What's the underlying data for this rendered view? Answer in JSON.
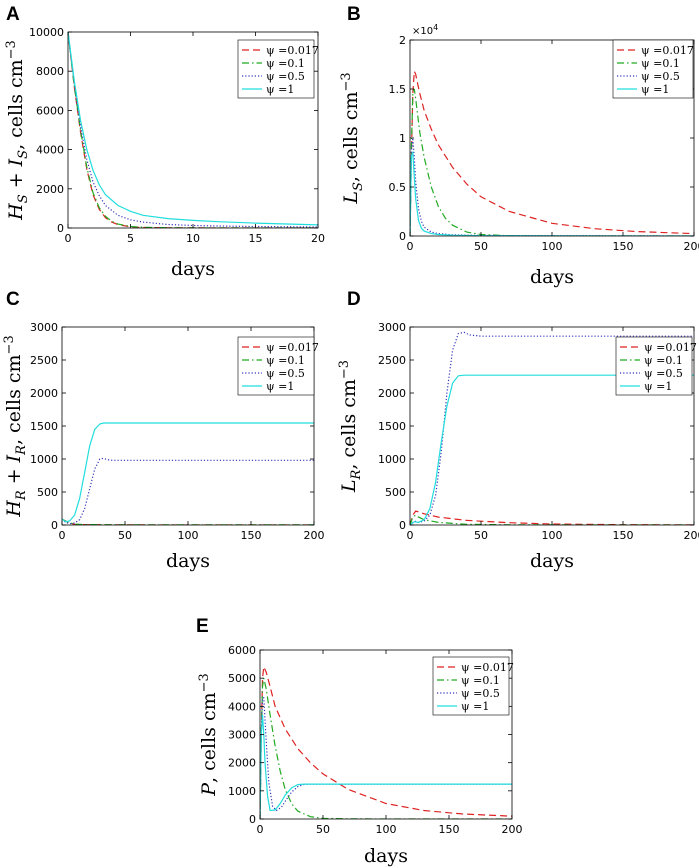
{
  "chart_data": [
    {
      "panel": "A",
      "type": "line",
      "xlabel": "days",
      "ylabel": {
        "main": "H",
        "sub1": "S",
        "mid": " + I",
        "sub2": "S",
        "unit": ", cells cm",
        "sup": "−3"
      },
      "xlim": [
        0,
        20
      ],
      "ylim": [
        0,
        10000
      ],
      "xticks": [
        0,
        5,
        10,
        15,
        20
      ],
      "yticks": [
        0,
        2000,
        4000,
        6000,
        8000,
        10000
      ],
      "series": [
        {
          "name": "ψ =0.017",
          "color": "#dd2222",
          "dash": "dashed",
          "x": [
            0,
            0.5,
            1,
            1.5,
            2,
            2.5,
            3,
            3.5,
            4,
            5,
            6,
            8,
            10,
            15,
            20
          ],
          "y": [
            10000,
            7200,
            4900,
            3000,
            1700,
            950,
            520,
            300,
            170,
            60,
            25,
            8,
            3,
            1,
            0
          ]
        },
        {
          "name": "ψ =0.1",
          "color": "#22aa22",
          "dash": "dashdot",
          "x": [
            0,
            0.5,
            1,
            1.5,
            2,
            2.5,
            3,
            3.5,
            4,
            5,
            6,
            8,
            10,
            15,
            20
          ],
          "y": [
            10000,
            7250,
            5000,
            3100,
            1800,
            1030,
            590,
            340,
            200,
            80,
            35,
            12,
            5,
            1,
            0
          ]
        },
        {
          "name": "ψ =0.5",
          "color": "#3333bb",
          "dash": "dotted",
          "x": [
            0,
            0.5,
            1,
            1.5,
            2,
            2.5,
            3,
            4,
            5,
            6,
            8,
            10,
            12,
            15,
            20
          ],
          "y": [
            10000,
            7350,
            5200,
            3500,
            2350,
            1650,
            1150,
            650,
            420,
            300,
            180,
            130,
            100,
            75,
            50
          ]
        },
        {
          "name": "ψ =1",
          "color": "#22dddd",
          "dash": "solid",
          "x": [
            0,
            0.5,
            1,
            1.5,
            2,
            2.5,
            3,
            4,
            5,
            6,
            8,
            10,
            12,
            15,
            20
          ],
          "y": [
            10000,
            7500,
            5500,
            4000,
            2950,
            2200,
            1700,
            1150,
            850,
            650,
            480,
            390,
            320,
            250,
            160
          ]
        }
      ]
    },
    {
      "panel": "B",
      "type": "line",
      "xlabel": "days",
      "ylabel": {
        "main": "L",
        "sub1": "S",
        "mid": "",
        "sub2": "",
        "unit": ", cells cm",
        "sup": "−3"
      },
      "xlim": [
        0,
        200
      ],
      "ylim": [
        0,
        20000
      ],
      "xticks": [
        0,
        50,
        100,
        150,
        200
      ],
      "yticks": [
        0,
        5000,
        10000,
        15000,
        20000
      ],
      "ytick_labels": [
        "0",
        "0.5",
        "1",
        "1.5",
        "2"
      ],
      "sci_base": "×10",
      "sci_exp": "4",
      "series": [
        {
          "name": "ψ =0.017",
          "color": "#dd2222",
          "dash": "dashed",
          "x": [
            0,
            1,
            2,
            3,
            4,
            5,
            7,
            10,
            15,
            20,
            30,
            40,
            50,
            70,
            100,
            130,
            160,
            200
          ],
          "y": [
            0,
            8000,
            14500,
            16800,
            16500,
            15800,
            14500,
            12800,
            10900,
            9300,
            7000,
            5300,
            4000,
            2500,
            1300,
            750,
            450,
            250
          ]
        },
        {
          "name": "ψ =0.1",
          "color": "#22aa22",
          "dash": "dashdot",
          "x": [
            0,
            1,
            2,
            3,
            4,
            5,
            7,
            10,
            15,
            20,
            25,
            30,
            40,
            50,
            70,
            100,
            200
          ],
          "y": [
            0,
            9000,
            14500,
            15000,
            14000,
            12800,
            10500,
            8000,
            5000,
            3000,
            1800,
            1100,
            400,
            150,
            30,
            5,
            0
          ]
        },
        {
          "name": "ψ =0.5",
          "color": "#3333bb",
          "dash": "dotted",
          "x": [
            0,
            1,
            2,
            3,
            4,
            6,
            8,
            10,
            15,
            20,
            30,
            50,
            200
          ],
          "y": [
            0,
            8500,
            10000,
            8000,
            5500,
            2800,
            1500,
            900,
            400,
            250,
            120,
            50,
            0
          ]
        },
        {
          "name": "ψ =1",
          "color": "#22dddd",
          "dash": "solid",
          "x": [
            0,
            1,
            2,
            3,
            4,
            6,
            8,
            10,
            15,
            20,
            30,
            50,
            200
          ],
          "y": [
            0,
            8200,
            8500,
            6000,
            3800,
            1600,
            800,
            500,
            250,
            150,
            80,
            30,
            0
          ]
        }
      ]
    },
    {
      "panel": "C",
      "type": "line",
      "xlabel": "days",
      "ylabel": {
        "main": "H",
        "sub1": "R",
        "mid": " + I",
        "sub2": "R",
        "unit": ", cells cm",
        "sup": "−3"
      },
      "xlim": [
        0,
        200
      ],
      "ylim": [
        0,
        3000
      ],
      "xticks": [
        0,
        50,
        100,
        150,
        200
      ],
      "yticks": [
        0,
        500,
        1000,
        1500,
        2000,
        2500,
        3000
      ],
      "series": [
        {
          "name": "ψ =0.017",
          "color": "#dd2222",
          "dash": "dashed",
          "x": [
            0,
            5,
            10,
            20,
            50,
            200
          ],
          "y": [
            90,
            40,
            10,
            5,
            2,
            0
          ]
        },
        {
          "name": "ψ =0.1",
          "color": "#22aa22",
          "dash": "dashdot",
          "x": [
            0,
            5,
            10,
            20,
            50,
            200
          ],
          "y": [
            90,
            40,
            12,
            6,
            3,
            2
          ]
        },
        {
          "name": "ψ =0.5",
          "color": "#3333bb",
          "dash": "dotted",
          "x": [
            0,
            3,
            6,
            10,
            14,
            18,
            22,
            26,
            30,
            33,
            36,
            40,
            45,
            200
          ],
          "y": [
            90,
            40,
            20,
            30,
            80,
            250,
            550,
            850,
            1000,
            1010,
            990,
            980,
            980,
            980
          ]
        },
        {
          "name": "ψ =1",
          "color": "#22dddd",
          "dash": "solid",
          "x": [
            0,
            3,
            6,
            10,
            14,
            18,
            22,
            26,
            30,
            33,
            36,
            40,
            200
          ],
          "y": [
            90,
            50,
            60,
            150,
            400,
            800,
            1200,
            1450,
            1530,
            1545,
            1545,
            1545,
            1545
          ]
        }
      ]
    },
    {
      "panel": "D",
      "type": "line",
      "xlabel": "days",
      "ylabel": {
        "main": "L",
        "sub1": "R",
        "mid": "",
        "sub2": "",
        "unit": ", cells cm",
        "sup": "−3"
      },
      "xlim": [
        0,
        200
      ],
      "ylim": [
        0,
        3000
      ],
      "xticks": [
        0,
        50,
        100,
        150,
        200
      ],
      "yticks": [
        0,
        500,
        1000,
        1500,
        2000,
        2500,
        3000
      ],
      "series": [
        {
          "name": "ψ =0.017",
          "color": "#dd2222",
          "dash": "dashed",
          "x": [
            0,
            2,
            4,
            6,
            10,
            20,
            40,
            70,
            100,
            150,
            200
          ],
          "y": [
            0,
            150,
            210,
            200,
            170,
            120,
            70,
            35,
            15,
            5,
            2
          ]
        },
        {
          "name": "ψ =0.1",
          "color": "#22aa22",
          "dash": "dashdot",
          "x": [
            0,
            2,
            4,
            6,
            10,
            20,
            40,
            70,
            100,
            200
          ],
          "y": [
            0,
            120,
            150,
            120,
            80,
            40,
            10,
            3,
            1,
            0
          ]
        },
        {
          "name": "ψ =0.5",
          "color": "#3333bb",
          "dash": "dotted",
          "x": [
            0,
            3,
            6,
            10,
            14,
            18,
            22,
            26,
            30,
            34,
            38,
            42,
            50,
            200
          ],
          "y": [
            0,
            60,
            40,
            60,
            150,
            450,
            1100,
            2000,
            2650,
            2900,
            2920,
            2880,
            2860,
            2860
          ]
        },
        {
          "name": "ψ =1",
          "color": "#22dddd",
          "dash": "solid",
          "x": [
            0,
            3,
            6,
            10,
            14,
            18,
            22,
            26,
            30,
            34,
            38,
            45,
            200
          ],
          "y": [
            0,
            50,
            40,
            80,
            250,
            650,
            1250,
            1800,
            2150,
            2260,
            2270,
            2270,
            2270
          ]
        }
      ]
    },
    {
      "panel": "E",
      "type": "line",
      "xlabel": "days",
      "ylabel": {
        "main": "P",
        "sub1": "",
        "mid": "",
        "sub2": "",
        "unit": ", cells cm",
        "sup": "−3"
      },
      "xlim": [
        0,
        200
      ],
      "ylim": [
        0,
        6000
      ],
      "xticks": [
        0,
        50,
        100,
        150,
        200
      ],
      "yticks": [
        0,
        1000,
        2000,
        3000,
        4000,
        5000,
        6000
      ],
      "series": [
        {
          "name": "ψ =0.017",
          "color": "#dd2222",
          "dash": "dashed",
          "x": [
            0,
            1,
            2,
            3,
            5,
            8,
            12,
            20,
            30,
            40,
            50,
            70,
            100,
            130,
            160,
            200
          ],
          "y": [
            0,
            3000,
            5000,
            5400,
            5200,
            4700,
            4000,
            3200,
            2500,
            2000,
            1600,
            1050,
            550,
            300,
            180,
            100
          ]
        },
        {
          "name": "ψ =0.1",
          "color": "#22aa22",
          "dash": "dashdot",
          "x": [
            0,
            1,
            2,
            3,
            5,
            8,
            12,
            16,
            20,
            25,
            30,
            40,
            50,
            70,
            200
          ],
          "y": [
            0,
            3000,
            4700,
            5000,
            4600,
            3700,
            2600,
            1700,
            1050,
            550,
            280,
            80,
            25,
            5,
            0
          ]
        },
        {
          "name": "ψ =0.5",
          "color": "#3333bb",
          "dash": "dotted",
          "x": [
            0,
            1,
            2,
            3,
            5,
            7,
            10,
            13,
            17,
            21,
            25,
            30,
            35,
            40,
            50,
            200
          ],
          "y": [
            0,
            3000,
            4300,
            4300,
            2700,
            1300,
            450,
            300,
            420,
            700,
            950,
            1150,
            1230,
            1240,
            1240,
            1240
          ]
        },
        {
          "name": "ψ =1",
          "color": "#22dddd",
          "dash": "solid",
          "x": [
            0,
            1,
            2,
            3,
            4,
            6,
            8,
            12,
            16,
            20,
            25,
            30,
            35,
            40,
            50,
            200
          ],
          "y": [
            0,
            3000,
            3700,
            3000,
            2000,
            800,
            300,
            320,
            550,
            850,
            1100,
            1220,
            1240,
            1240,
            1240,
            1240
          ]
        }
      ]
    }
  ]
}
